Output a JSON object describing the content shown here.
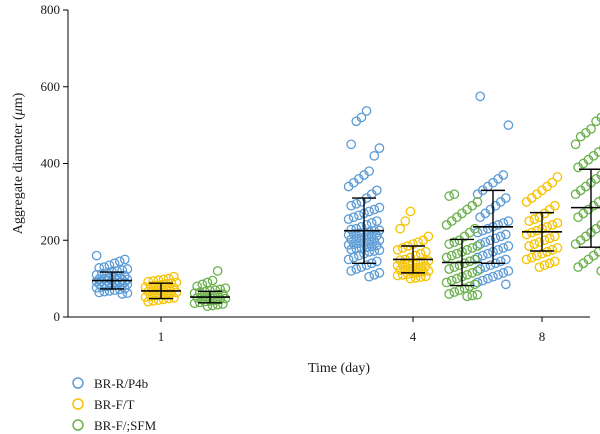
{
  "chart_data": {
    "type": "scatter",
    "title": "",
    "xlabel": "Time (day)",
    "ylabel": "Aggregate diameter (μm)",
    "ylabel_prefix": "Aggregate diameter (",
    "ylabel_mu": "μ",
    "ylabel_suffix": "m)",
    "ylim": [
      0,
      800
    ],
    "yticks": [
      0,
      200,
      400,
      600,
      800
    ],
    "categories": [
      "1",
      "4",
      "8"
    ],
    "grid": false,
    "legend_position": "bottom-left",
    "series": [
      {
        "name": "BR-R/P4b",
        "color": "#5b9bd5",
        "mean": [
          95,
          225,
          235
        ],
        "sd_low": [
          73,
          140,
          140
        ],
        "sd_high": [
          117,
          310,
          330
        ],
        "points": [
          [
            160,
            150,
            145,
            140,
            135,
            130,
            128,
            125,
            122,
            120,
            118,
            115,
            112,
            110,
            108,
            106,
            104,
            102,
            100,
            99,
            98,
            97,
            96,
            95,
            94,
            93,
            92,
            91,
            90,
            89,
            88,
            87,
            86,
            85,
            84,
            83,
            82,
            80,
            78,
            76,
            74,
            72,
            70,
            68,
            66,
            64,
            62,
            60
          ],
          [
            537,
            520,
            510,
            450,
            440,
            420,
            380,
            370,
            360,
            350,
            340,
            330,
            320,
            310,
            300,
            295,
            290,
            285,
            280,
            275,
            270,
            265,
            260,
            255,
            250,
            245,
            240,
            235,
            230,
            228,
            226,
            224,
            222,
            220,
            218,
            216,
            214,
            212,
            210,
            208,
            206,
            204,
            202,
            200,
            198,
            196,
            194,
            192,
            190,
            188,
            186,
            184,
            182,
            180,
            178,
            176,
            174,
            172,
            170,
            165,
            160,
            155,
            150,
            145,
            140,
            135,
            130,
            125,
            120,
            115,
            110,
            105
          ],
          [
            575,
            500,
            370,
            360,
            350,
            340,
            330,
            320,
            310,
            300,
            290,
            280,
            270,
            260,
            250,
            245,
            240,
            235,
            230,
            225,
            220,
            215,
            210,
            205,
            200,
            195,
            190,
            185,
            180,
            175,
            170,
            165,
            160,
            155,
            150,
            145,
            140,
            135,
            130,
            125,
            120,
            115,
            110,
            105,
            100,
            95,
            90,
            85
          ]
        ]
      },
      {
        "name": "BR-F/T",
        "color": "#f5c200",
        "mean": [
          68,
          150,
          222
        ],
        "sd_low": [
          48,
          115,
          172
        ],
        "sd_high": [
          88,
          185,
          272
        ],
        "points": [
          [
            105,
            100,
            98,
            96,
            94,
            92,
            90,
            88,
            86,
            84,
            82,
            80,
            78,
            76,
            74,
            72,
            70,
            68,
            66,
            64,
            62,
            60,
            58,
            56,
            54,
            52,
            50,
            48,
            46,
            44,
            42,
            40
          ],
          [
            275,
            250,
            230,
            210,
            200,
            195,
            190,
            185,
            180,
            175,
            170,
            165,
            160,
            155,
            150,
            148,
            146,
            144,
            142,
            140,
            138,
            136,
            134,
            132,
            130,
            128,
            126,
            124,
            122,
            120,
            118,
            116,
            114,
            112,
            110,
            108,
            106,
            104,
            102,
            100
          ],
          [
            365,
            350,
            340,
            330,
            320,
            310,
            300,
            290,
            280,
            270,
            260,
            255,
            250,
            245,
            240,
            235,
            230,
            225,
            220,
            215,
            210,
            205,
            200,
            195,
            190,
            185,
            180,
            175,
            170,
            165,
            160,
            155,
            150,
            145,
            140,
            135,
            130
          ]
        ]
      },
      {
        "name": "BR-F/;SFM",
        "color": "#6ab04c",
        "mean": [
          52,
          142,
          285
        ],
        "sd_low": [
          37,
          82,
          182
        ],
        "sd_high": [
          67,
          202,
          385
        ],
        "points": [
          [
            120,
            95,
            90,
            85,
            80,
            75,
            72,
            70,
            68,
            66,
            64,
            62,
            60,
            58,
            56,
            54,
            52,
            50,
            48,
            46,
            44,
            42,
            40,
            38,
            36,
            34,
            32,
            30,
            28
          ],
          [
            320,
            315,
            300,
            290,
            280,
            270,
            260,
            250,
            240,
            230,
            220,
            210,
            200,
            195,
            190,
            185,
            180,
            175,
            170,
            165,
            160,
            155,
            150,
            145,
            140,
            135,
            130,
            125,
            120,
            115,
            110,
            105,
            100,
            95,
            90,
            85,
            80,
            75,
            70,
            65,
            60,
            58,
            56,
            54
          ],
          [
            520,
            510,
            490,
            480,
            470,
            450,
            440,
            430,
            420,
            410,
            400,
            390,
            380,
            370,
            360,
            350,
            340,
            330,
            320,
            310,
            300,
            290,
            280,
            270,
            260,
            250,
            240,
            230,
            220,
            210,
            200,
            190,
            180,
            170,
            160,
            150,
            140,
            130,
            125,
            120
          ]
        ]
      }
    ]
  }
}
